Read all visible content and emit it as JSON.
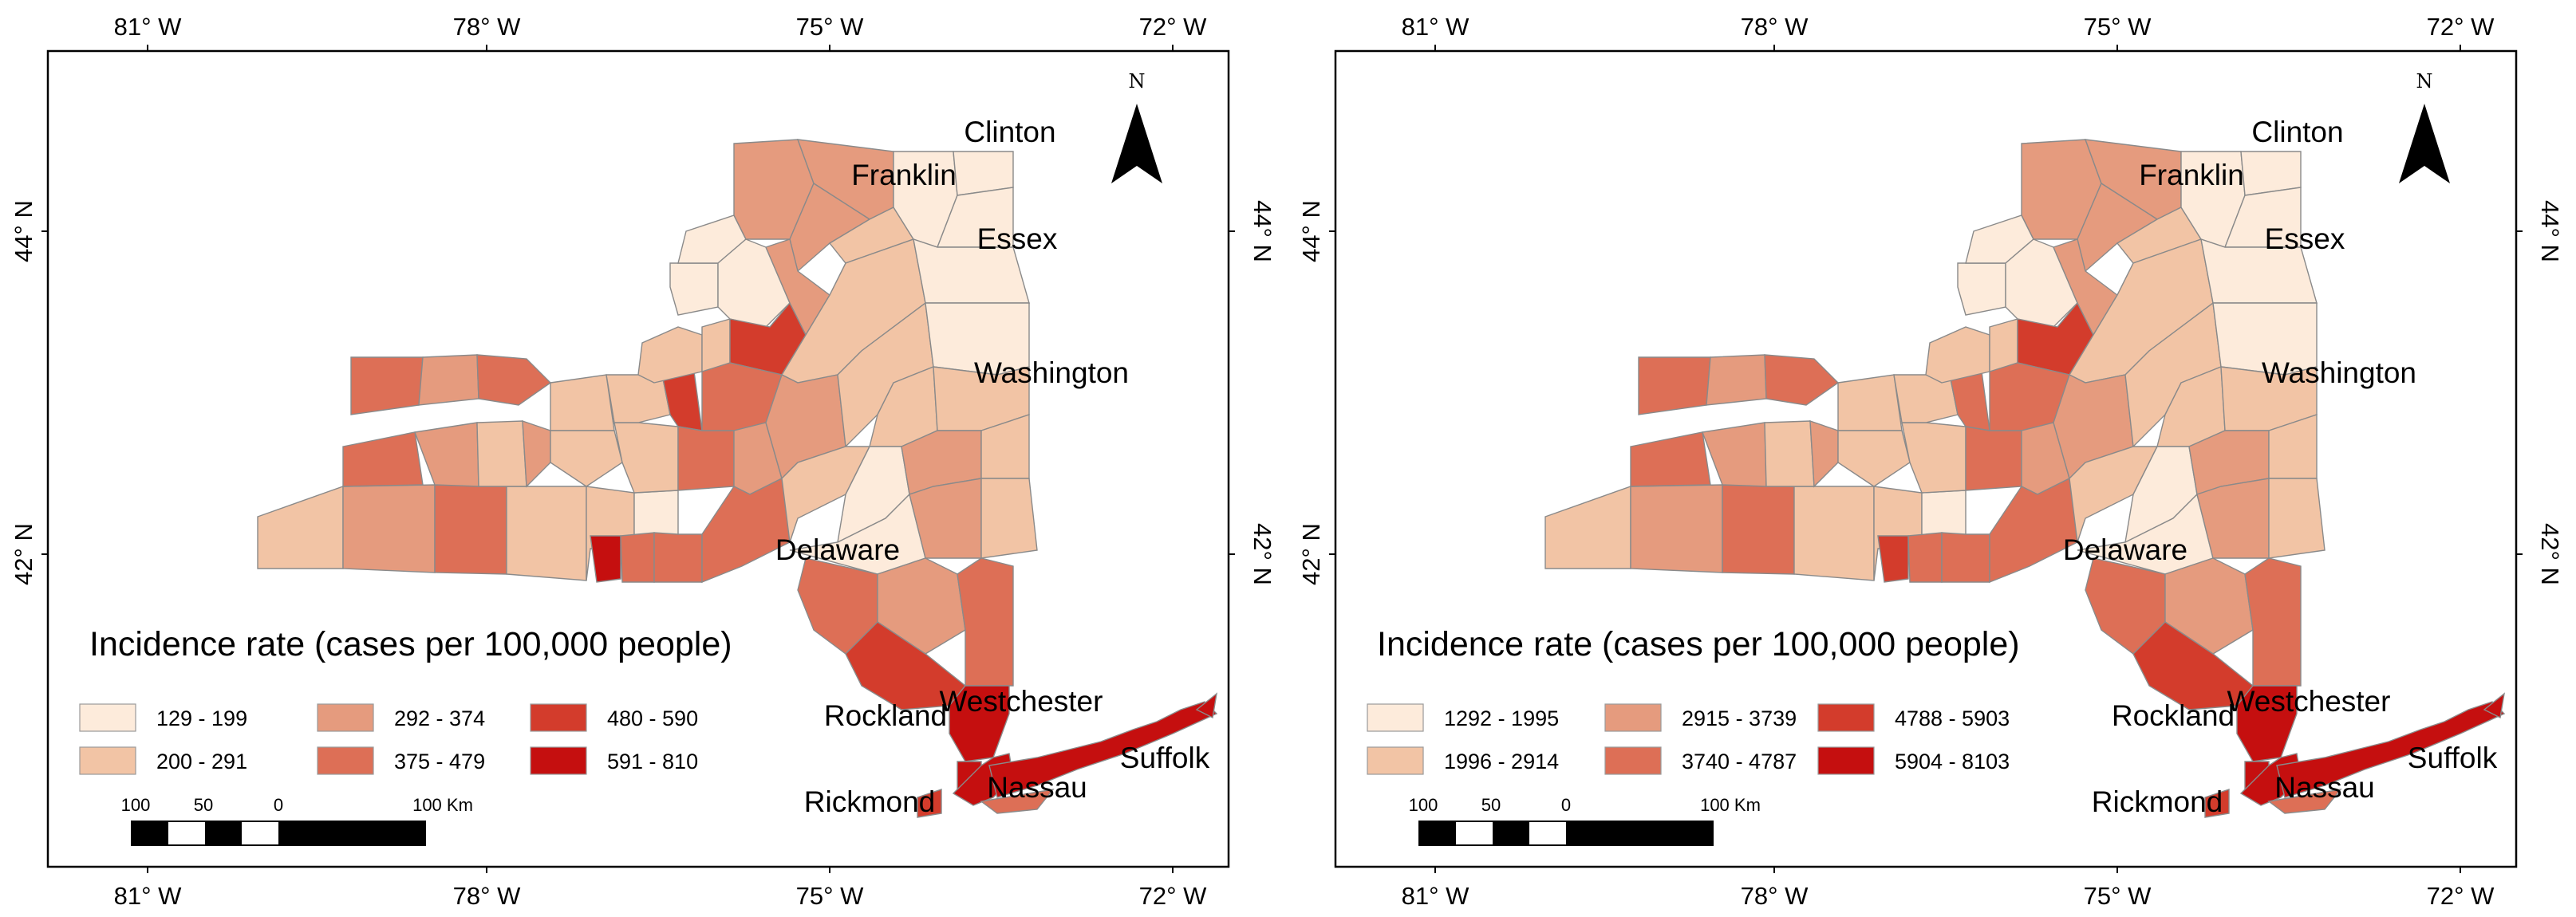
{
  "axes": {
    "longitude_ticks": [
      "81° W",
      "78° W",
      "75° W",
      "72° W"
    ],
    "latitude_ticks": [
      "44° N",
      "42° N"
    ]
  },
  "north_arrow": {
    "label": "N",
    "icon": "north-arrow-icon"
  },
  "scale_bar": {
    "labels": [
      "100",
      "50",
      "0",
      "100 Km"
    ]
  },
  "county_labels": [
    "Clinton",
    "Franklin",
    "Essex",
    "Washington",
    "Delaware",
    "Rockland",
    "Westchester",
    "Suffolk",
    "Nassau",
    "Rickmond"
  ],
  "class_colors": [
    "#fdebdb",
    "#f2c4a5",
    "#e59b7e",
    "#dd6f56",
    "#d33c2c",
    "#c50f0f"
  ],
  "panels": [
    {
      "legend_title": "Incidence rate (cases per 100,000 people)",
      "legend": [
        "129 - 199",
        "200 - 291",
        "292 - 374",
        "375 - 479",
        "480 - 590",
        "591 - 810"
      ]
    },
    {
      "legend_title": "Incidence rate (cases per 100,000 people)",
      "legend": [
        "1292 - 1995",
        "1996 - 2914",
        "2915 - 3739",
        "3740 - 4787",
        "4788 - 5903",
        "5904 - 8103"
      ]
    }
  ]
}
